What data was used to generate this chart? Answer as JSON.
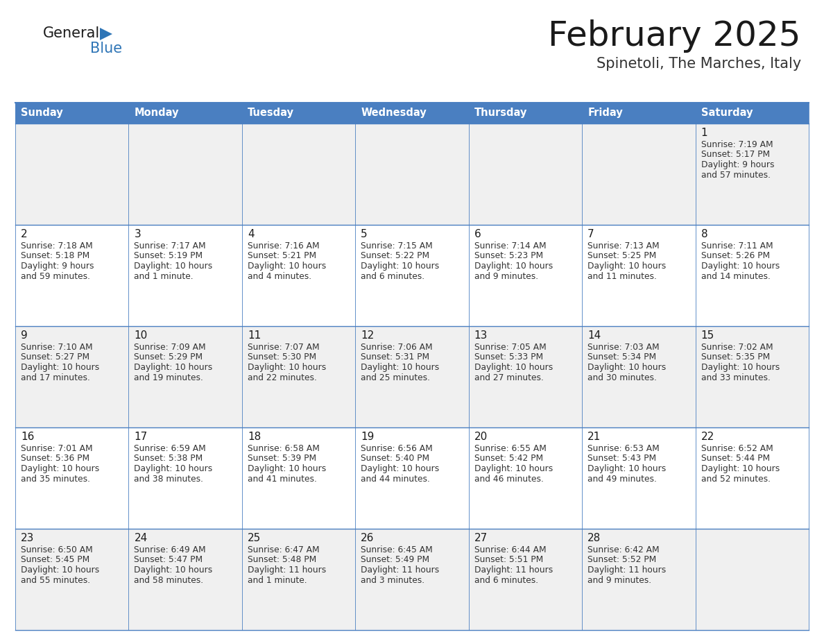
{
  "title": "February 2025",
  "subtitle": "Spinetoli, The Marches, Italy",
  "header_color": "#4a7fc1",
  "header_text_color": "#FFFFFF",
  "cell_bg_even": "#f0f0f0",
  "cell_bg_odd": "#FFFFFF",
  "border_color": "#4a7fc1",
  "border_thin_color": "#cccccc",
  "days_of_week": [
    "Sunday",
    "Monday",
    "Tuesday",
    "Wednesday",
    "Thursday",
    "Friday",
    "Saturday"
  ],
  "title_color": "#1a1a1a",
  "subtitle_color": "#333333",
  "day_number_color": "#1a1a1a",
  "info_color": "#333333",
  "logo_general_color": "#1a1a1a",
  "logo_blue_color": "#2E75B6",
  "logo_triangle_color": "#2E75B6",
  "calendar": [
    [
      null,
      null,
      null,
      null,
      null,
      null,
      {
        "day": 1,
        "sunrise": "7:19 AM",
        "sunset": "5:17 PM",
        "daylight": "9 hours",
        "daylight2": "and 57 minutes."
      }
    ],
    [
      {
        "day": 2,
        "sunrise": "7:18 AM",
        "sunset": "5:18 PM",
        "daylight": "9 hours",
        "daylight2": "and 59 minutes."
      },
      {
        "day": 3,
        "sunrise": "7:17 AM",
        "sunset": "5:19 PM",
        "daylight": "10 hours",
        "daylight2": "and 1 minute."
      },
      {
        "day": 4,
        "sunrise": "7:16 AM",
        "sunset": "5:21 PM",
        "daylight": "10 hours",
        "daylight2": "and 4 minutes."
      },
      {
        "day": 5,
        "sunrise": "7:15 AM",
        "sunset": "5:22 PM",
        "daylight": "10 hours",
        "daylight2": "and 6 minutes."
      },
      {
        "day": 6,
        "sunrise": "7:14 AM",
        "sunset": "5:23 PM",
        "daylight": "10 hours",
        "daylight2": "and 9 minutes."
      },
      {
        "day": 7,
        "sunrise": "7:13 AM",
        "sunset": "5:25 PM",
        "daylight": "10 hours",
        "daylight2": "and 11 minutes."
      },
      {
        "day": 8,
        "sunrise": "7:11 AM",
        "sunset": "5:26 PM",
        "daylight": "10 hours",
        "daylight2": "and 14 minutes."
      }
    ],
    [
      {
        "day": 9,
        "sunrise": "7:10 AM",
        "sunset": "5:27 PM",
        "daylight": "10 hours",
        "daylight2": "and 17 minutes."
      },
      {
        "day": 10,
        "sunrise": "7:09 AM",
        "sunset": "5:29 PM",
        "daylight": "10 hours",
        "daylight2": "and 19 minutes."
      },
      {
        "day": 11,
        "sunrise": "7:07 AM",
        "sunset": "5:30 PM",
        "daylight": "10 hours",
        "daylight2": "and 22 minutes."
      },
      {
        "day": 12,
        "sunrise": "7:06 AM",
        "sunset": "5:31 PM",
        "daylight": "10 hours",
        "daylight2": "and 25 minutes."
      },
      {
        "day": 13,
        "sunrise": "7:05 AM",
        "sunset": "5:33 PM",
        "daylight": "10 hours",
        "daylight2": "and 27 minutes."
      },
      {
        "day": 14,
        "sunrise": "7:03 AM",
        "sunset": "5:34 PM",
        "daylight": "10 hours",
        "daylight2": "and 30 minutes."
      },
      {
        "day": 15,
        "sunrise": "7:02 AM",
        "sunset": "5:35 PM",
        "daylight": "10 hours",
        "daylight2": "and 33 minutes."
      }
    ],
    [
      {
        "day": 16,
        "sunrise": "7:01 AM",
        "sunset": "5:36 PM",
        "daylight": "10 hours",
        "daylight2": "and 35 minutes."
      },
      {
        "day": 17,
        "sunrise": "6:59 AM",
        "sunset": "5:38 PM",
        "daylight": "10 hours",
        "daylight2": "and 38 minutes."
      },
      {
        "day": 18,
        "sunrise": "6:58 AM",
        "sunset": "5:39 PM",
        "daylight": "10 hours",
        "daylight2": "and 41 minutes."
      },
      {
        "day": 19,
        "sunrise": "6:56 AM",
        "sunset": "5:40 PM",
        "daylight": "10 hours",
        "daylight2": "and 44 minutes."
      },
      {
        "day": 20,
        "sunrise": "6:55 AM",
        "sunset": "5:42 PM",
        "daylight": "10 hours",
        "daylight2": "and 46 minutes."
      },
      {
        "day": 21,
        "sunrise": "6:53 AM",
        "sunset": "5:43 PM",
        "daylight": "10 hours",
        "daylight2": "and 49 minutes."
      },
      {
        "day": 22,
        "sunrise": "6:52 AM",
        "sunset": "5:44 PM",
        "daylight": "10 hours",
        "daylight2": "and 52 minutes."
      }
    ],
    [
      {
        "day": 23,
        "sunrise": "6:50 AM",
        "sunset": "5:45 PM",
        "daylight": "10 hours",
        "daylight2": "and 55 minutes."
      },
      {
        "day": 24,
        "sunrise": "6:49 AM",
        "sunset": "5:47 PM",
        "daylight": "10 hours",
        "daylight2": "and 58 minutes."
      },
      {
        "day": 25,
        "sunrise": "6:47 AM",
        "sunset": "5:48 PM",
        "daylight": "11 hours",
        "daylight2": "and 1 minute."
      },
      {
        "day": 26,
        "sunrise": "6:45 AM",
        "sunset": "5:49 PM",
        "daylight": "11 hours",
        "daylight2": "and 3 minutes."
      },
      {
        "day": 27,
        "sunrise": "6:44 AM",
        "sunset": "5:51 PM",
        "daylight": "11 hours",
        "daylight2": "and 6 minutes."
      },
      {
        "day": 28,
        "sunrise": "6:42 AM",
        "sunset": "5:52 PM",
        "daylight": "11 hours",
        "daylight2": "and 9 minutes."
      },
      null
    ]
  ]
}
